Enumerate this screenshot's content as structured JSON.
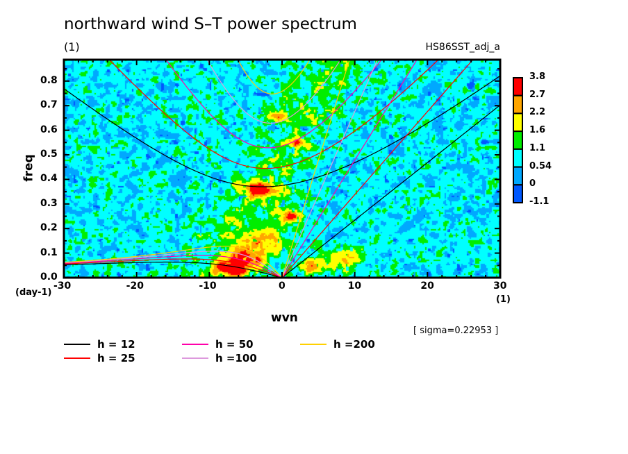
{
  "title": "northward wind S–T power spectrum",
  "subtitle": "(1)",
  "run_name": "HS86SST_adj_a",
  "sigma_text": "[ sigma=0.22953 ]",
  "chart_data": {
    "type": "heatmap",
    "title": "northward wind S–T power spectrum",
    "xlabel": "wvn",
    "x_unit": "(1)",
    "ylabel": "freq",
    "y_unit": "(day-1)",
    "xlim": [
      -30,
      30
    ],
    "ylim": [
      0,
      0.887
    ],
    "x_ticks": [
      "-30",
      "-20",
      "-10",
      "0",
      "10",
      "20",
      "30"
    ],
    "y_ticks": [
      "0.0",
      "0.1",
      "0.2",
      "0.3",
      "0.4",
      "0.5",
      "0.6",
      "0.7",
      "0.8"
    ],
    "colorbar": {
      "levels": [
        "3.8",
        "2.7",
        "2.2",
        "1.6",
        "1.1",
        "0.54",
        "0",
        "-1.1"
      ],
      "colors": [
        "#ff0000",
        "#ffa500",
        "#ffff00",
        "#00ee00",
        "#00ffff",
        "#00a8ff",
        "#0058ff"
      ]
    },
    "dispersion_curves": {
      "series": [
        {
          "name": "h = 12",
          "h": 12,
          "color": "#000000"
        },
        {
          "name": "h = 25",
          "h": 25,
          "color": "#ff0000"
        },
        {
          "name": "h = 50",
          "h": 50,
          "color": "#ff00aa"
        },
        {
          "name": "h =100",
          "h": 100,
          "color": "#dd99dd"
        },
        {
          "name": "h =200",
          "h": 200,
          "color": "#ffd000"
        }
      ]
    }
  }
}
